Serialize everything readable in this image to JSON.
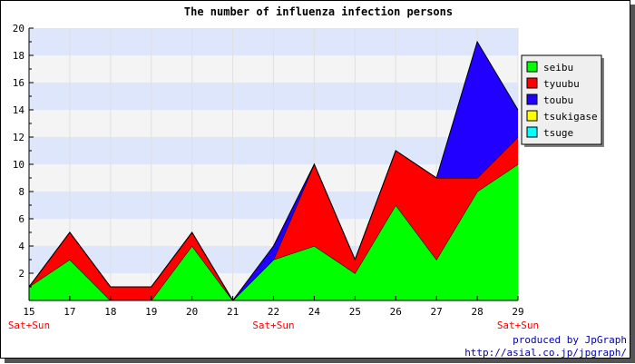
{
  "chart_data": {
    "type": "area",
    "stacked": true,
    "title": "The number of influenza infection persons",
    "categories": [
      "15",
      "17",
      "18",
      "19",
      "20",
      "21",
      "22",
      "24",
      "25",
      "26",
      "27",
      "28",
      "29"
    ],
    "weekend_marks": [
      {
        "category": "15",
        "label": "Sat+Sun"
      },
      {
        "category": "22",
        "label": "Sat+Sun"
      },
      {
        "category": "29",
        "label": "Sat+Sun"
      }
    ],
    "ylim": [
      0,
      20
    ],
    "ytick_step": 2,
    "band_colors": [
      "#dde6fb",
      "#f4f4f4"
    ],
    "legend_position": "right",
    "series": [
      {
        "name": "seibu",
        "color": "#00ff00",
        "values": [
          1,
          3,
          0,
          0,
          4,
          0,
          3,
          4,
          2,
          7,
          3,
          8,
          10
        ]
      },
      {
        "name": "tyuubu",
        "color": "#ff0000",
        "values": [
          0,
          2,
          1,
          1,
          1,
          0,
          0,
          6,
          1,
          4,
          6,
          1,
          2
        ]
      },
      {
        "name": "toubu",
        "color": "#2200ff",
        "values": [
          0,
          0,
          0,
          0,
          0,
          0,
          1,
          0,
          0,
          0,
          0,
          10,
          2
        ]
      },
      {
        "name": "tsukigase",
        "color": "#ffff00",
        "values": [
          0,
          0,
          0,
          0,
          0,
          0,
          0,
          0,
          0,
          0,
          0,
          0,
          0
        ]
      },
      {
        "name": "tsuge",
        "color": "#00ffff",
        "values": [
          0,
          0,
          0,
          0,
          0,
          0,
          0,
          0,
          0,
          0,
          0,
          0,
          0
        ]
      }
    ],
    "credit": [
      "produced by JpGraph",
      "http://asial.co.jp/jpgraph/"
    ]
  }
}
